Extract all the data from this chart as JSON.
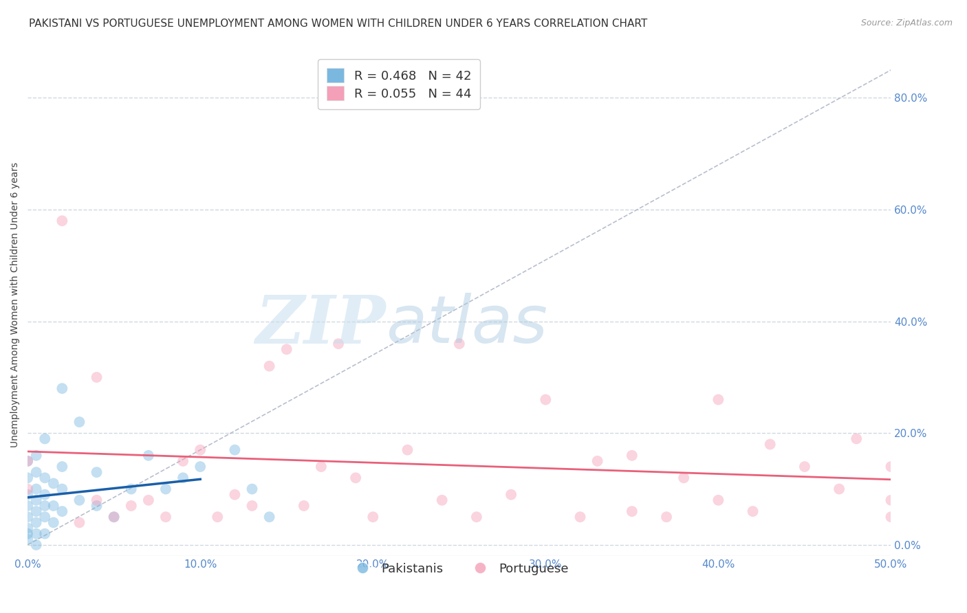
{
  "title": "PAKISTANI VS PORTUGUESE UNEMPLOYMENT AMONG WOMEN WITH CHILDREN UNDER 6 YEARS CORRELATION CHART",
  "source": "Source: ZipAtlas.com",
  "ylabel": "Unemployment Among Women with Children Under 6 years",
  "xlim": [
    0.0,
    0.5
  ],
  "ylim": [
    -0.02,
    0.88
  ],
  "xticks": [
    0.0,
    0.1,
    0.2,
    0.3,
    0.4,
    0.5
  ],
  "yticks": [
    0.0,
    0.2,
    0.4,
    0.6,
    0.8
  ],
  "legend_entries": [
    {
      "label": "R = 0.468   N = 42",
      "color": "#a8c8f0"
    },
    {
      "label": "R = 0.055   N = 44",
      "color": "#f4b8c8"
    }
  ],
  "legend_bottom": [
    "Pakistanis",
    "Portuguese"
  ],
  "watermark_zip": "ZIP",
  "watermark_atlas": "atlas",
  "pakistani_x": [
    0.0,
    0.0,
    0.0,
    0.0,
    0.0,
    0.0,
    0.0,
    0.0,
    0.005,
    0.005,
    0.005,
    0.005,
    0.005,
    0.005,
    0.005,
    0.01,
    0.01,
    0.01,
    0.01,
    0.01,
    0.015,
    0.015,
    0.015,
    0.02,
    0.02,
    0.02,
    0.03,
    0.03,
    0.04,
    0.04,
    0.05,
    0.06,
    0.07,
    0.08,
    0.09,
    0.1,
    0.12,
    0.13,
    0.14,
    0.005,
    0.01,
    0.02
  ],
  "pakistani_y": [
    0.01,
    0.02,
    0.03,
    0.05,
    0.07,
    0.09,
    0.12,
    0.15,
    0.0,
    0.02,
    0.04,
    0.06,
    0.08,
    0.1,
    0.13,
    0.02,
    0.05,
    0.07,
    0.09,
    0.12,
    0.04,
    0.07,
    0.11,
    0.06,
    0.1,
    0.14,
    0.08,
    0.22,
    0.07,
    0.13,
    0.05,
    0.1,
    0.16,
    0.1,
    0.12,
    0.14,
    0.17,
    0.1,
    0.05,
    0.16,
    0.19,
    0.28
  ],
  "portuguese_x": [
    0.0,
    0.0,
    0.02,
    0.03,
    0.04,
    0.04,
    0.05,
    0.06,
    0.07,
    0.08,
    0.09,
    0.1,
    0.11,
    0.12,
    0.13,
    0.14,
    0.15,
    0.16,
    0.17,
    0.18,
    0.19,
    0.2,
    0.22,
    0.24,
    0.26,
    0.28,
    0.3,
    0.32,
    0.33,
    0.35,
    0.37,
    0.38,
    0.4,
    0.42,
    0.43,
    0.45,
    0.47,
    0.48,
    0.5,
    0.5,
    0.5,
    0.25,
    0.35,
    0.4
  ],
  "portuguese_y": [
    0.1,
    0.15,
    0.58,
    0.04,
    0.08,
    0.3,
    0.05,
    0.07,
    0.08,
    0.05,
    0.15,
    0.17,
    0.05,
    0.09,
    0.07,
    0.32,
    0.35,
    0.07,
    0.14,
    0.36,
    0.12,
    0.05,
    0.17,
    0.08,
    0.05,
    0.09,
    0.26,
    0.05,
    0.15,
    0.06,
    0.05,
    0.12,
    0.08,
    0.06,
    0.18,
    0.14,
    0.1,
    0.19,
    0.14,
    0.08,
    0.05,
    0.36,
    0.16,
    0.26
  ],
  "blue_color": "#7bb8e0",
  "pink_color": "#f4a0b8",
  "blue_line_color": "#1a5fa8",
  "pink_line_color": "#e8607a",
  "ref_line_color": "#b0b8c8",
  "grid_color": "#d0d8e0",
  "background_color": "#ffffff",
  "title_fontsize": 11,
  "axis_label_fontsize": 10,
  "tick_fontsize": 11,
  "tick_color": "#5588cc"
}
